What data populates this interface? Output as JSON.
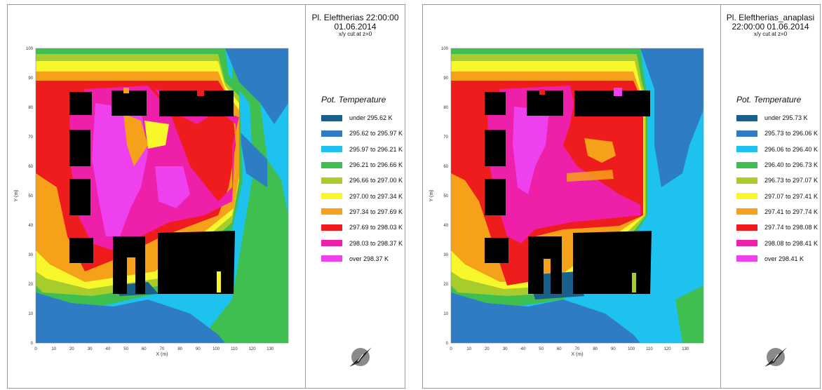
{
  "chart_data": [
    {
      "type": "heatmap",
      "title": "Pl. Eleftherias 22:00:00 01.06.2014",
      "subtitle": "x/y cut at z=0",
      "xlabel": "X (m)",
      "ylabel": "Y (m)",
      "xlim": [
        0,
        140
      ],
      "ylim": [
        0,
        100
      ],
      "x_ticks": [
        "0",
        "10",
        "20",
        "30",
        "40",
        "50",
        "60",
        "70",
        "80",
        "90",
        "100",
        "110",
        "120",
        "130"
      ],
      "y_ticks": [
        "0",
        "10",
        "20",
        "30",
        "40",
        "50",
        "60",
        "70",
        "80",
        "90",
        "100"
      ],
      "legend_title": "Pot. Temperature",
      "legend": [
        {
          "label": "under 295.62 K",
          "color": "#1a5f8a"
        },
        {
          "label": "295.62 to 295.97 K",
          "color": "#2e7cc4"
        },
        {
          "label": "295.97 to 296.21 K",
          "color": "#1ec2ee"
        },
        {
          "label": "296.21 to 296.66 K",
          "color": "#3fbf4f"
        },
        {
          "label": "296.66 to 297.00 K",
          "color": "#a7cc2b"
        },
        {
          "label": "297.00 to 297.34 K",
          "color": "#f7f72c"
        },
        {
          "label": "297.34 to 297.69 K",
          "color": "#f5a21a"
        },
        {
          "label": "297.69 to 298.03 K",
          "color": "#ee1c1c"
        },
        {
          "label": "298.03 to 298.37 K",
          "color": "#ee1fa8"
        },
        {
          "label": "over 298.37 K",
          "color": "#ee40ee"
        }
      ]
    },
    {
      "type": "heatmap",
      "title": "Pl. Eleftherias_anaplasi 22:00:00 01.06.2014",
      "subtitle": "x/y cut at z=0",
      "xlabel": "X (m)",
      "ylabel": "Y (m)",
      "xlim": [
        0,
        140
      ],
      "ylim": [
        0,
        100
      ],
      "x_ticks": [
        "0",
        "10",
        "20",
        "30",
        "40",
        "50",
        "60",
        "70",
        "80",
        "90",
        "100",
        "110",
        "120",
        "130"
      ],
      "y_ticks": [
        "0",
        "10",
        "20",
        "30",
        "40",
        "50",
        "60",
        "70",
        "80",
        "90",
        "100"
      ],
      "legend_title": "Pot. Temperature",
      "legend": [
        {
          "label": "under 295.73 K",
          "color": "#1a5f8a"
        },
        {
          "label": "295.73 to 296.06 K",
          "color": "#2e7cc4"
        },
        {
          "label": "296.06 to 296.40 K",
          "color": "#1ec2ee"
        },
        {
          "label": "296.40 to 296.73 K",
          "color": "#3fbf4f"
        },
        {
          "label": "296.73 to 297.07 K",
          "color": "#a7cc2b"
        },
        {
          "label": "297.07 to 297.41 K",
          "color": "#f7f72c"
        },
        {
          "label": "297.41 to 297.74 K",
          "color": "#f5a21a"
        },
        {
          "label": "297.74 to 298.08 K",
          "color": "#ee1c1c"
        },
        {
          "label": "298.08 to 298.41 K",
          "color": "#ee1fa8"
        },
        {
          "label": "over 298.41 K",
          "color": "#ee40ee"
        }
      ]
    }
  ],
  "icons": {
    "compass": "north-arrow-icon"
  }
}
